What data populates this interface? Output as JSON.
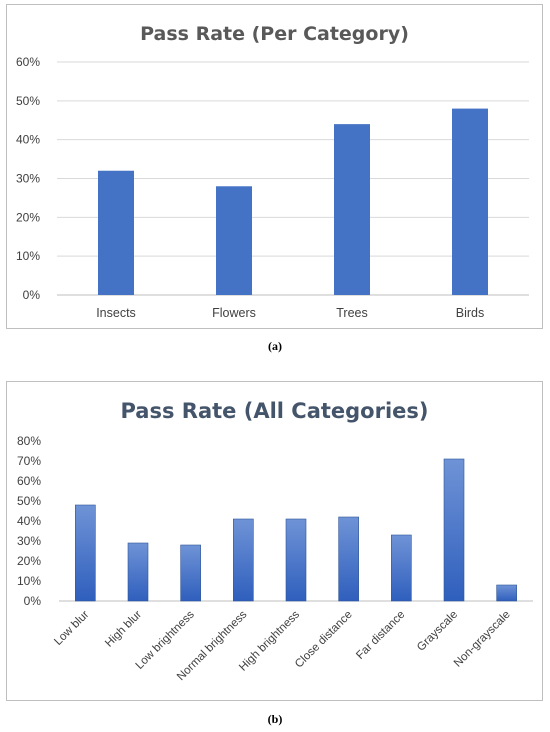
{
  "chart_data": [
    {
      "type": "bar",
      "title": "Pass Rate (Per Category)",
      "categories": [
        "Insects",
        "Flowers",
        "Trees",
        "Birds"
      ],
      "values": [
        0.32,
        0.28,
        0.44,
        0.48
      ],
      "yticks": [
        "0%",
        "10%",
        "20%",
        "30%",
        "40%",
        "50%",
        "60%"
      ],
      "ylim": [
        0,
        0.6
      ],
      "xlabel": "",
      "ylabel": "",
      "grid": true,
      "bar_color": "#4472c4",
      "caption": "(a)"
    },
    {
      "type": "bar",
      "title": "Pass Rate (All Categories)",
      "categories": [
        "Low blur",
        "High blur",
        "Low brightness",
        "Normal brightness",
        "High brightness",
        "Close distance",
        "Far distance",
        "Grayscale",
        "Non-grayscale"
      ],
      "values": [
        0.48,
        0.29,
        0.28,
        0.41,
        0.41,
        0.42,
        0.33,
        0.71,
        0.08
      ],
      "yticks": [
        "0%",
        "10%",
        "20%",
        "30%",
        "40%",
        "50%",
        "60%",
        "70%",
        "80%"
      ],
      "ylim": [
        0,
        0.8
      ],
      "xlabel": "",
      "ylabel": "",
      "grid": false,
      "bar_color": "#4472c4",
      "caption": "(b)"
    }
  ]
}
